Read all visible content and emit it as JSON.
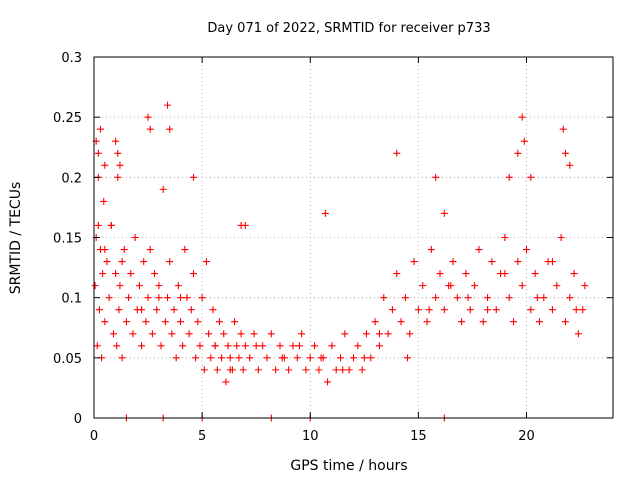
{
  "chart_data": {
    "type": "scatter",
    "title": "Day 071 of 2022, SRMTID for receiver p733",
    "xlabel": "GPS time / hours",
    "ylabel": "SRMTID / TECUs",
    "xlim": [
      0,
      24
    ],
    "ylim": [
      0,
      0.3
    ],
    "xticks": [
      0,
      5,
      10,
      15,
      20
    ],
    "xtick_labels": [
      "0",
      "5",
      "10",
      "15",
      "20"
    ],
    "yticks": [
      0,
      0.05,
      0.1,
      0.15,
      0.2,
      0.25,
      0.3
    ],
    "ytick_labels": [
      "0",
      "0.05",
      "0.1",
      "0.15",
      "0.2",
      "0.25",
      "0.3"
    ],
    "grid": true,
    "marker": "+",
    "color": "#ff0000",
    "series": [
      {
        "name": "SRMTID",
        "x": [
          0.05,
          0.1,
          0.15,
          0.2,
          0.25,
          0.3,
          0.35,
          0.4,
          0.45,
          0.5,
          0.6,
          0.7,
          0.8,
          0.9,
          1.0,
          1.05,
          1.1,
          1.15,
          1.2,
          1.3,
          1.4,
          1.5,
          1.6,
          1.7,
          1.8,
          1.9,
          2.0,
          2.1,
          2.2,
          2.3,
          2.4,
          2.5,
          2.6,
          2.7,
          2.8,
          2.9,
          3.0,
          3.1,
          3.2,
          3.3,
          3.4,
          3.5,
          3.6,
          3.7,
          3.8,
          3.9,
          4.0,
          4.1,
          4.2,
          4.3,
          4.4,
          4.5,
          4.6,
          4.7,
          4.8,
          4.9,
          5.0,
          5.1,
          5.2,
          5.3,
          5.4,
          5.5,
          5.6,
          5.7,
          5.8,
          5.9,
          6.0,
          6.1,
          6.2,
          6.3,
          6.4,
          6.5,
          6.6,
          6.7,
          6.8,
          6.9,
          7.0,
          7.2,
          7.4,
          7.6,
          7.8,
          8.0,
          8.2,
          8.4,
          8.6,
          8.8,
          9.0,
          9.2,
          9.4,
          9.6,
          9.8,
          10.0,
          10.2,
          10.4,
          10.6,
          10.8,
          11.0,
          11.2,
          11.4,
          11.6,
          11.8,
          12.0,
          12.2,
          12.4,
          12.6,
          12.8,
          13.0,
          13.2,
          13.4,
          13.6,
          13.8,
          14.0,
          14.2,
          14.4,
          14.6,
          14.8,
          15.0,
          15.2,
          15.4,
          15.6,
          15.8,
          16.0,
          16.2,
          16.4,
          16.6,
          16.8,
          17.0,
          17.2,
          17.4,
          17.6,
          17.8,
          18.0,
          18.2,
          18.4,
          18.6,
          18.8,
          19.0,
          19.2,
          19.4,
          19.6,
          19.8,
          20.0,
          20.2,
          20.4,
          20.6,
          20.8,
          21.0,
          21.2,
          21.4,
          21.6,
          21.8,
          22.0,
          22.2,
          22.4,
          22.6,
          22.7,
          0.1,
          0.2,
          0.3,
          0.5,
          1.0,
          1.1,
          1.2,
          2.5,
          2.6,
          3.4,
          3.5,
          4.6,
          6.8,
          7.0,
          10.7,
          14.0,
          15.8,
          16.2,
          19.2,
          19.6,
          19.8,
          19.9,
          20.2,
          21.7,
          21.8,
          22.0,
          1.5,
          3.2,
          5.0,
          8.2,
          10.0,
          16.2,
          0.2,
          0.5,
          0.8,
          1.3,
          2.2,
          3.0,
          4.0,
          5.6,
          6.3,
          7.5,
          8.7,
          9.5,
          10.5,
          11.5,
          12.5,
          13.2,
          14.5,
          15.5,
          16.5,
          17.3,
          18.2,
          19.0,
          20.5,
          21.2,
          22.3
        ],
        "y": [
          0.11,
          0.15,
          0.06,
          0.22,
          0.09,
          0.14,
          0.05,
          0.12,
          0.18,
          0.08,
          0.13,
          0.1,
          0.16,
          0.07,
          0.12,
          0.06,
          0.2,
          0.09,
          0.11,
          0.05,
          0.14,
          0.08,
          0.1,
          0.12,
          0.07,
          0.15,
          0.09,
          0.11,
          0.06,
          0.13,
          0.08,
          0.1,
          0.14,
          0.07,
          0.12,
          0.09,
          0.11,
          0.06,
          0.19,
          0.08,
          0.1,
          0.13,
          0.07,
          0.09,
          0.05,
          0.11,
          0.08,
          0.06,
          0.14,
          0.1,
          0.07,
          0.09,
          0.12,
          0.05,
          0.08,
          0.06,
          0.1,
          0.04,
          0.13,
          0.07,
          0.05,
          0.09,
          0.06,
          0.04,
          0.08,
          0.05,
          0.07,
          0.03,
          0.06,
          0.05,
          0.04,
          0.08,
          0.06,
          0.05,
          0.07,
          0.04,
          0.06,
          0.05,
          0.07,
          0.04,
          0.06,
          0.05,
          0.07,
          0.04,
          0.06,
          0.05,
          0.04,
          0.06,
          0.05,
          0.07,
          0.04,
          0.05,
          0.06,
          0.04,
          0.05,
          0.03,
          0.06,
          0.04,
          0.05,
          0.07,
          0.04,
          0.05,
          0.06,
          0.04,
          0.07,
          0.05,
          0.08,
          0.06,
          0.1,
          0.07,
          0.09,
          0.12,
          0.08,
          0.1,
          0.07,
          0.13,
          0.09,
          0.11,
          0.08,
          0.14,
          0.1,
          0.12,
          0.09,
          0.11,
          0.13,
          0.1,
          0.08,
          0.12,
          0.09,
          0.11,
          0.14,
          0.08,
          0.1,
          0.13,
          0.09,
          0.12,
          0.15,
          0.1,
          0.08,
          0.13,
          0.11,
          0.14,
          0.09,
          0.12,
          0.08,
          0.1,
          0.13,
          0.09,
          0.11,
          0.15,
          0.08,
          0.1,
          0.12,
          0.07,
          0.09,
          0.11,
          0.23,
          0.2,
          0.24,
          0.21,
          0.23,
          0.22,
          0.21,
          0.25,
          0.24,
          0.26,
          0.24,
          0.2,
          0.16,
          0.16,
          0.17,
          0.22,
          0.2,
          0.17,
          0.2,
          0.22,
          0.25,
          0.23,
          0.2,
          0.24,
          0.22,
          0.21,
          0.0,
          0.0,
          0.0,
          0.0,
          0.0,
          0.0,
          0.16,
          0.14,
          0.16,
          0.13,
          0.09,
          0.1,
          0.1,
          0.06,
          0.04,
          0.06,
          0.05,
          0.06,
          0.05,
          0.04,
          0.05,
          0.07,
          0.05,
          0.09,
          0.11,
          0.1,
          0.09,
          0.12,
          0.1,
          0.13,
          0.09
        ]
      }
    ]
  }
}
